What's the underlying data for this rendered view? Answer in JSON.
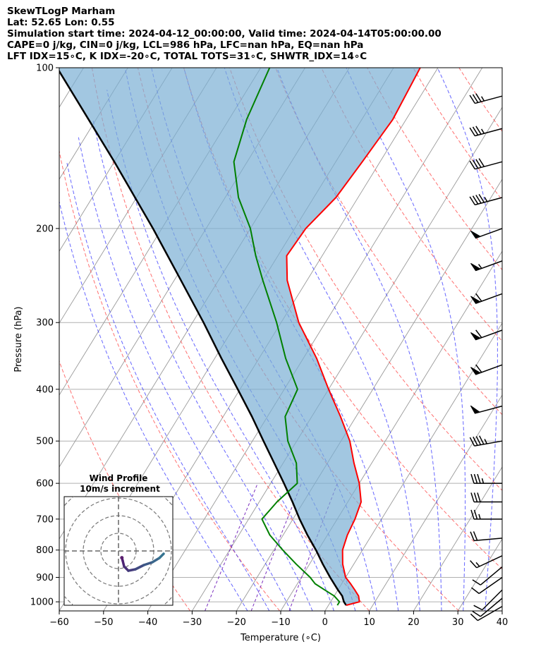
{
  "header": {
    "line1": "SkewTLogP Marham",
    "line2": "Lat: 52.65   Lon: 0.55",
    "line3": "Simulation start time: 2024-04-12_00:00:00, Valid time: 2024-04-14T05:00:00.00",
    "line4": "CAPE=0 j/kg, CIN=0 j/kg, LCL=986 hPa, LFC=nan hPa, EQ=nan hPa",
    "line5": "LFT IDX=15∘C, K IDX=-20∘C, TOTAL TOTS=31∘C, SHWTR_IDX=14∘C"
  },
  "colors": {
    "temperature": "#ff0000",
    "dewpoint": "#008000",
    "parcel": "#000000",
    "shade": "#7bafd4",
    "dry_adiabat": "#ff4040",
    "moist_adiabat": "#3333ff",
    "mixing_ratio": "#7b2fbf",
    "isotherm": "#999999"
  },
  "chart_data": {
    "type": "skewt",
    "xlabel": "Temperature (∘C)",
    "ylabel": "Pressure (hPa)",
    "xlim": [
      -60,
      40
    ],
    "ylim": [
      1040,
      100
    ],
    "x_ticks": [
      "−60",
      "−50",
      "−40",
      "−30",
      "−20",
      "−10",
      "0",
      "10",
      "20",
      "30",
      "40"
    ],
    "x_tick_values": [
      -60,
      -50,
      -40,
      -30,
      -20,
      -10,
      0,
      10,
      20,
      30,
      40
    ],
    "y_ticks": [
      "100",
      "200",
      "300",
      "400",
      "500",
      "600",
      "700",
      "800",
      "900",
      "1000"
    ],
    "y_tick_values": [
      100,
      200,
      300,
      400,
      500,
      600,
      700,
      800,
      900,
      1000
    ],
    "temperature": {
      "name": "Temperature",
      "pressure": [
        1015,
        1000,
        975,
        950,
        925,
        900,
        850,
        800,
        750,
        700,
        650,
        600,
        550,
        500,
        450,
        400,
        350,
        300,
        250,
        225,
        200,
        175,
        150,
        125,
        100
      ],
      "values": [
        4,
        6.5,
        5.5,
        3.8,
        2,
        0,
        -2.5,
        -4.5,
        -5.5,
        -6,
        -7,
        -10,
        -14,
        -18,
        -23.5,
        -30,
        -37,
        -46,
        -54.5,
        -58,
        -57.5,
        -55,
        -54,
        -53,
        -54
      ]
    },
    "dewpoint": {
      "name": "Dewpoint",
      "pressure": [
        1015,
        1000,
        975,
        950,
        925,
        900,
        850,
        800,
        750,
        700,
        650,
        600,
        550,
        500,
        450,
        400,
        350,
        300,
        250,
        225,
        200,
        175,
        150,
        125,
        100
      ],
      "values": [
        2,
        2,
        0,
        -3,
        -6,
        -8,
        -13,
        -18,
        -23,
        -27,
        -26,
        -24,
        -27,
        -32,
        -36,
        -37,
        -44,
        -51,
        -60,
        -65,
        -70,
        -77,
        -83,
        -86,
        -88
      ]
    },
    "parcel": {
      "name": "Parcel profile",
      "pressure": [
        1015,
        1000,
        975,
        950,
        900,
        850,
        800,
        750,
        700,
        650,
        600,
        550,
        500,
        450,
        400,
        350,
        300,
        250,
        200,
        150,
        100
      ],
      "values": [
        4,
        3,
        1.8,
        0,
        -3.5,
        -7,
        -10.5,
        -14.5,
        -18.5,
        -22.5,
        -27,
        -32,
        -37.5,
        -43.5,
        -50.5,
        -58.5,
        -67.5,
        -78.5,
        -92,
        -110,
        -136
      ]
    },
    "wind_barbs": [
      {
        "pressure": 1020,
        "speed_kt": 10,
        "direction": 240
      },
      {
        "pressure": 985,
        "speed_kt": 10,
        "direction": 230
      },
      {
        "pressure": 950,
        "speed_kt": 10,
        "direction": 225
      },
      {
        "pressure": 900,
        "speed_kt": 10,
        "direction": 235
      },
      {
        "pressure": 860,
        "speed_kt": 10,
        "direction": 230
      },
      {
        "pressure": 820,
        "speed_kt": 15,
        "direction": 245
      },
      {
        "pressure": 760,
        "speed_kt": 20,
        "direction": 265
      },
      {
        "pressure": 700,
        "speed_kt": 25,
        "direction": 270
      },
      {
        "pressure": 650,
        "speed_kt": 30,
        "direction": 270
      },
      {
        "pressure": 600,
        "speed_kt": 35,
        "direction": 270
      },
      {
        "pressure": 500,
        "speed_kt": 45,
        "direction": 260
      },
      {
        "pressure": 430,
        "speed_kt": 50,
        "direction": 255
      },
      {
        "pressure": 360,
        "speed_kt": 60,
        "direction": 250
      },
      {
        "pressure": 310,
        "speed_kt": 60,
        "direction": 250
      },
      {
        "pressure": 265,
        "speed_kt": 60,
        "direction": 250
      },
      {
        "pressure": 230,
        "speed_kt": 55,
        "direction": 250
      },
      {
        "pressure": 200,
        "speed_kt": 50,
        "direction": 250
      },
      {
        "pressure": 175,
        "speed_kt": 45,
        "direction": 255
      },
      {
        "pressure": 150,
        "speed_kt": 40,
        "direction": 255
      },
      {
        "pressure": 130,
        "speed_kt": 35,
        "direction": 255
      },
      {
        "pressure": 113,
        "speed_kt": 35,
        "direction": 255
      }
    ],
    "hodograph": {
      "title_line1": "Wind Profile",
      "title_line2": "10m/s increment",
      "ring_step_ms": 10,
      "u": [
        1.2,
        1.5,
        2.0,
        3.5,
        6.0,
        9.0,
        12.0,
        14.5,
        16.0
      ],
      "v": [
        -2.4,
        -3.5,
        -5.5,
        -7.0,
        -6.5,
        -5.0,
        -4.0,
        -2.5,
        -1.0
      ]
    }
  }
}
